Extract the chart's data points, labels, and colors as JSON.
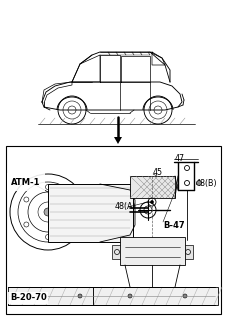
{
  "bg_color": "#ffffff",
  "line_color": "#000000",
  "text_color": "#000000",
  "fig_width": 2.27,
  "fig_height": 3.2,
  "dpi": 100,
  "labels": {
    "ATM1": "ATM-1",
    "B_20_70": "B-20-70",
    "B_47": "B-47",
    "label_47": "47",
    "label_48B": "48(B)",
    "label_45": "45",
    "label_48A": "48(A)"
  }
}
